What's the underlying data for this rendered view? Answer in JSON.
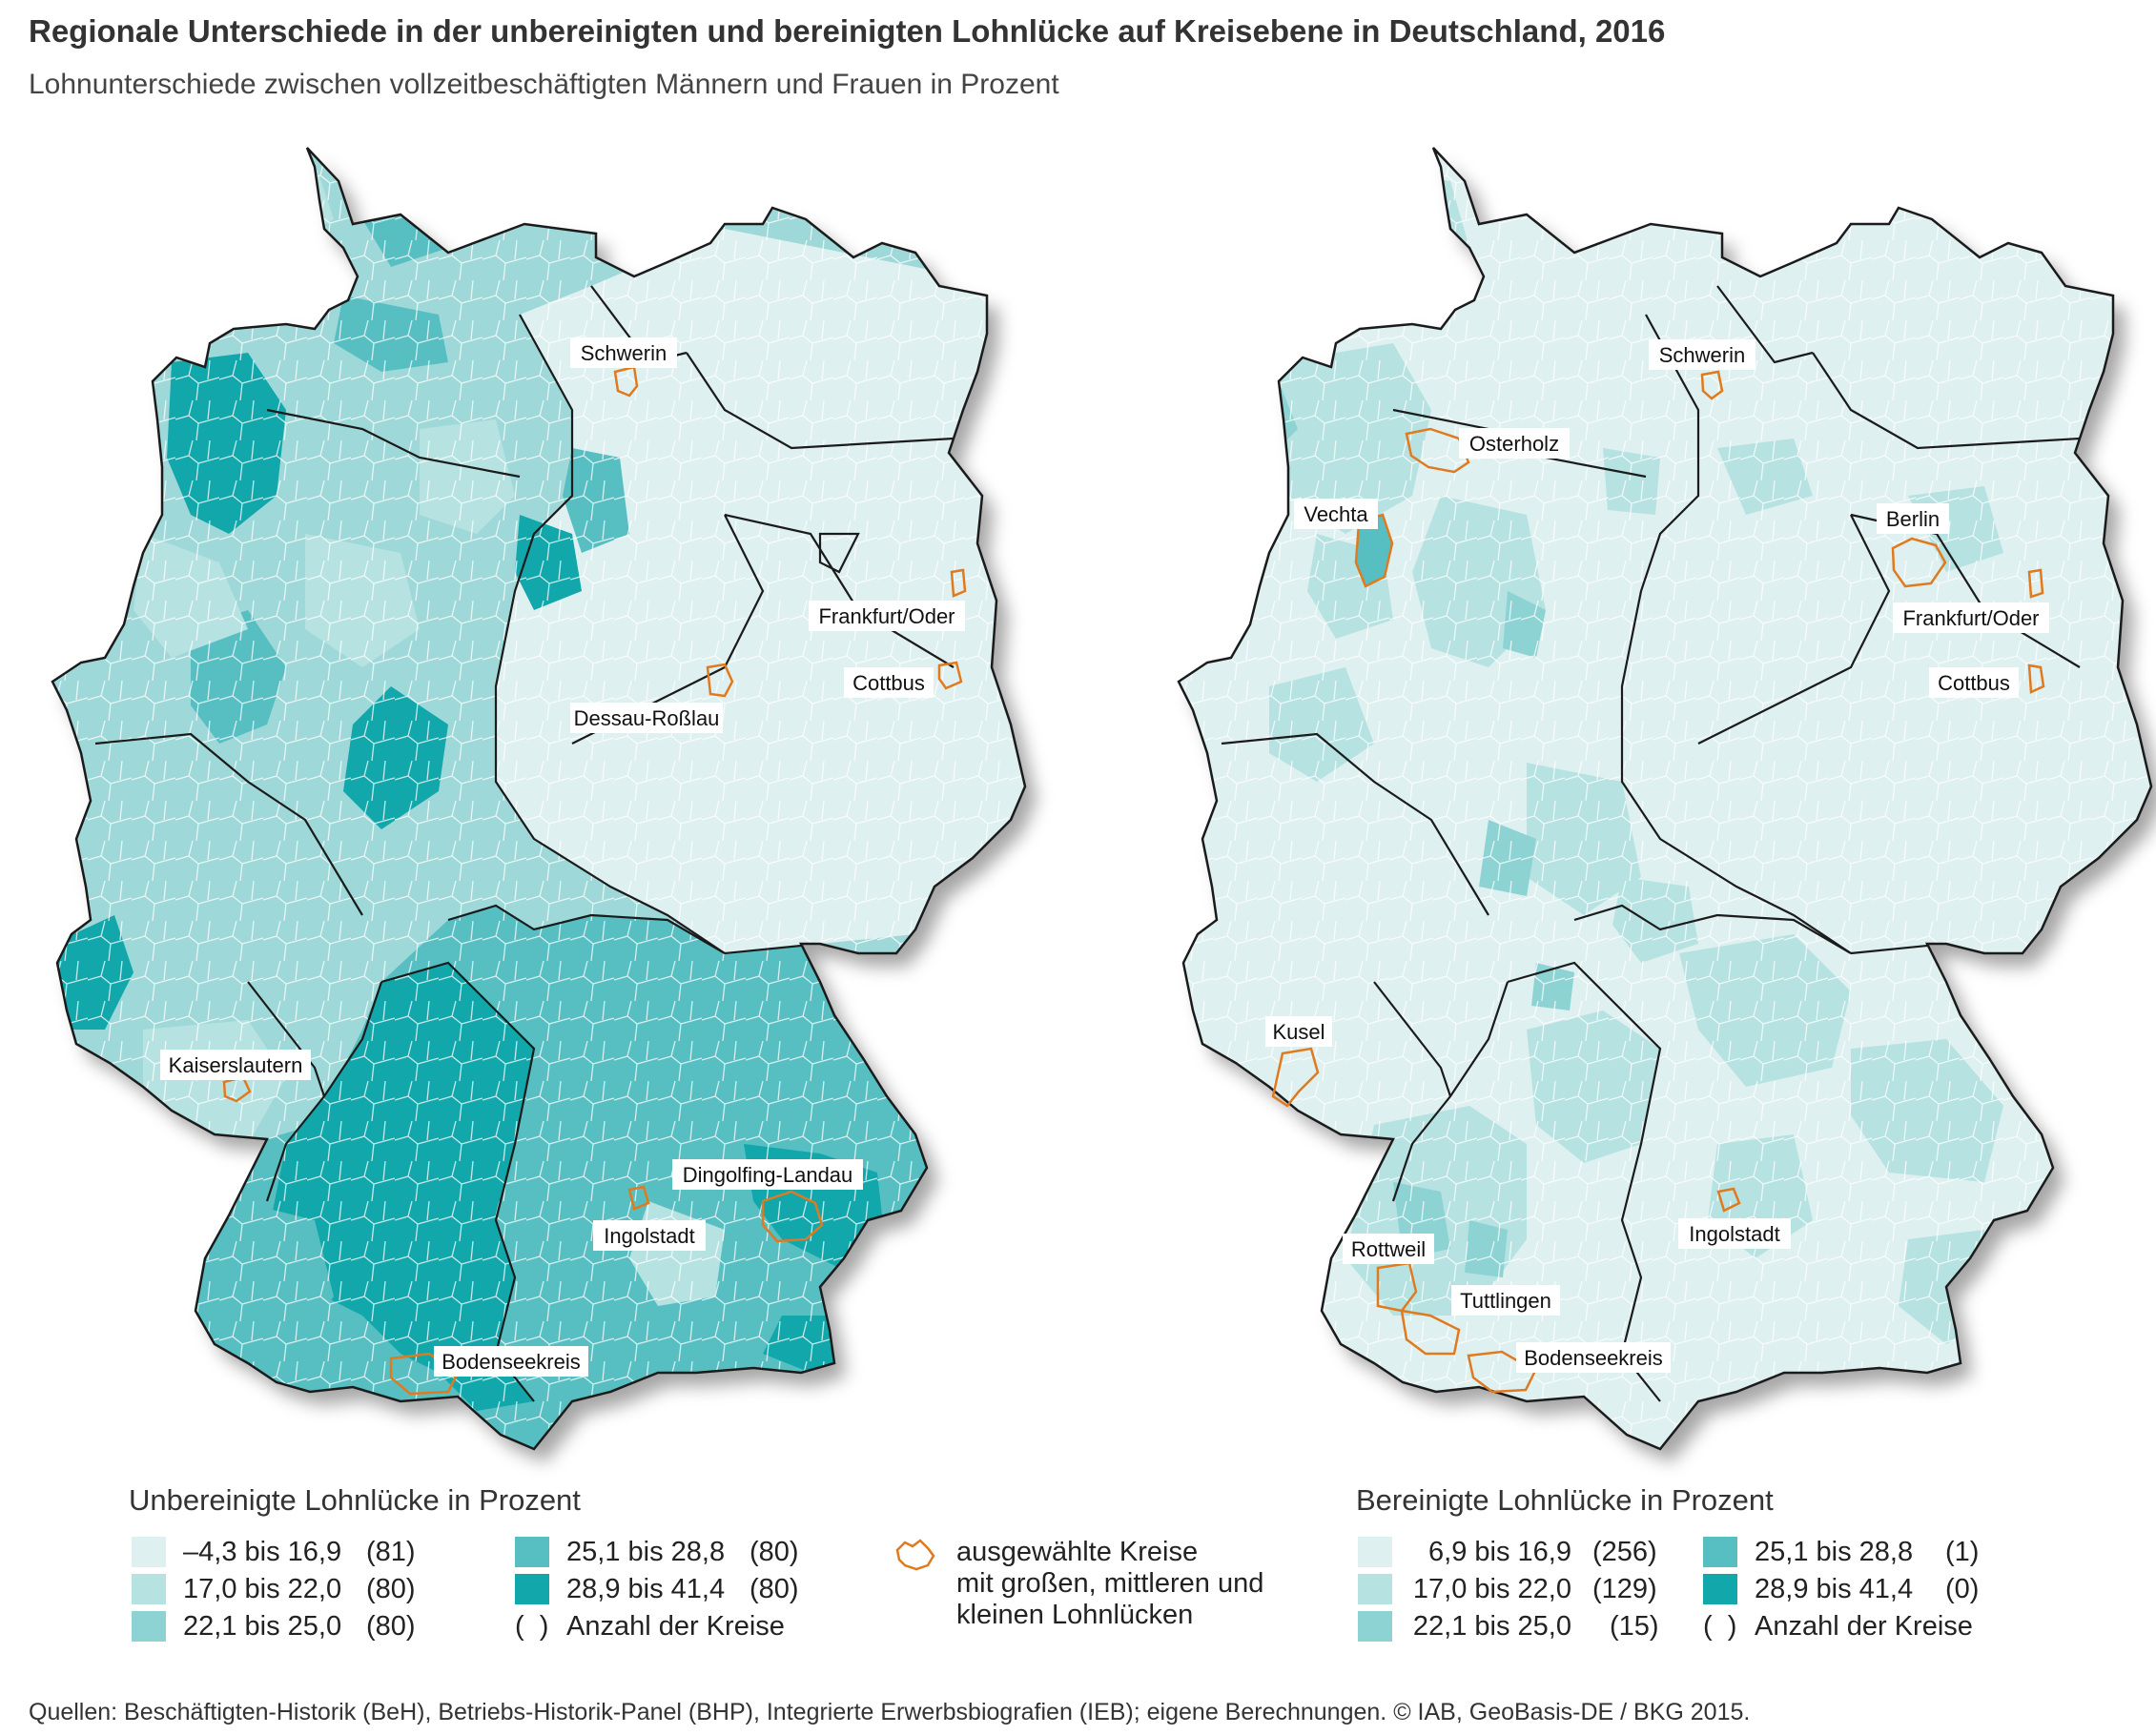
{
  "title": "Regionale Unterschiede in der unbereinigten und bereinigten Lohnlücke auf Kreisebene in Deutschland, 2016",
  "subtitle": "Lohnunterschiede zwischen vollzeitbeschäftigten Männern und Frauen in Prozent",
  "colors": {
    "class1": "#dff0f0",
    "class2": "#b7e2e2",
    "class3": "#8ed3d3",
    "class4": "#57bfc2",
    "class5": "#12a7ab",
    "border": "#1b1b1b",
    "district_line": "#ffffff",
    "selected_outline": "#e07a1f"
  },
  "maps": [
    {
      "id": "unbereinigt",
      "labels": [
        "Schwerin",
        "Frankfurt/Oder",
        "Cottbus",
        "Dessau-Roßlau",
        "Kaiserslautern",
        "Dingolfing-Landau",
        "Ingolstadt",
        "Bodenseekreis"
      ]
    },
    {
      "id": "bereinigt",
      "labels": [
        "Schwerin",
        "Osterholz",
        "Vechta",
        "Berlin",
        "Frankfurt/Oder",
        "Cottbus",
        "Kusel",
        "Ingolstadt",
        "Rottweil",
        "Tuttlingen",
        "Bodenseekreis"
      ]
    }
  ],
  "legend_left": {
    "title": "Unbereinigte Lohnlücke in Prozent",
    "rows": [
      {
        "range": "–4,3 bis 16,9",
        "count": "(81)",
        "color": "#dff0f0"
      },
      {
        "range": "17,0 bis 22,0",
        "count": "(80)",
        "color": "#b7e2e2"
      },
      {
        "range": "22,1 bis 25,0",
        "count": "(80)",
        "color": "#8ed3d3"
      },
      {
        "range": "25,1 bis 28,8",
        "count": "(80)",
        "color": "#57bfc2"
      },
      {
        "range": "28,9 bis 41,4",
        "count": "(80)",
        "color": "#12a7ab"
      }
    ],
    "count_note_symbol": "(  )",
    "count_note": "Anzahl der Kreise"
  },
  "legend_right": {
    "title": "Bereinigte Lohnlücke in Prozent",
    "rows": [
      {
        "range": "6,9 bis 16,9",
        "count": "(256)",
        "color": "#dff0f0"
      },
      {
        "range": "17,0 bis 22,0",
        "count": "(129)",
        "color": "#b7e2e2"
      },
      {
        "range": "22,1 bis 25,0",
        "count": "(15)",
        "color": "#8ed3d3"
      },
      {
        "range": "25,1 bis 28,8",
        "count": "(1)",
        "color": "#57bfc2"
      },
      {
        "range": "28,9 bis 41,4",
        "count": "(0)",
        "color": "#12a7ab"
      }
    ],
    "count_note_symbol": "(  )",
    "count_note": "Anzahl der Kreise"
  },
  "selected_legend": [
    "ausgewählte Kreise",
    "mit großen, mittleren und",
    "kleinen Lohnlücken"
  ],
  "source": "Quellen: Beschäftigten-Historik (BeH), Betriebs-Historik-Panel (BHP), Integrierte Erwerbsbiografien (IEB); eigene Berechnungen. © IAB, GeoBasis-DE / BKG 2015."
}
